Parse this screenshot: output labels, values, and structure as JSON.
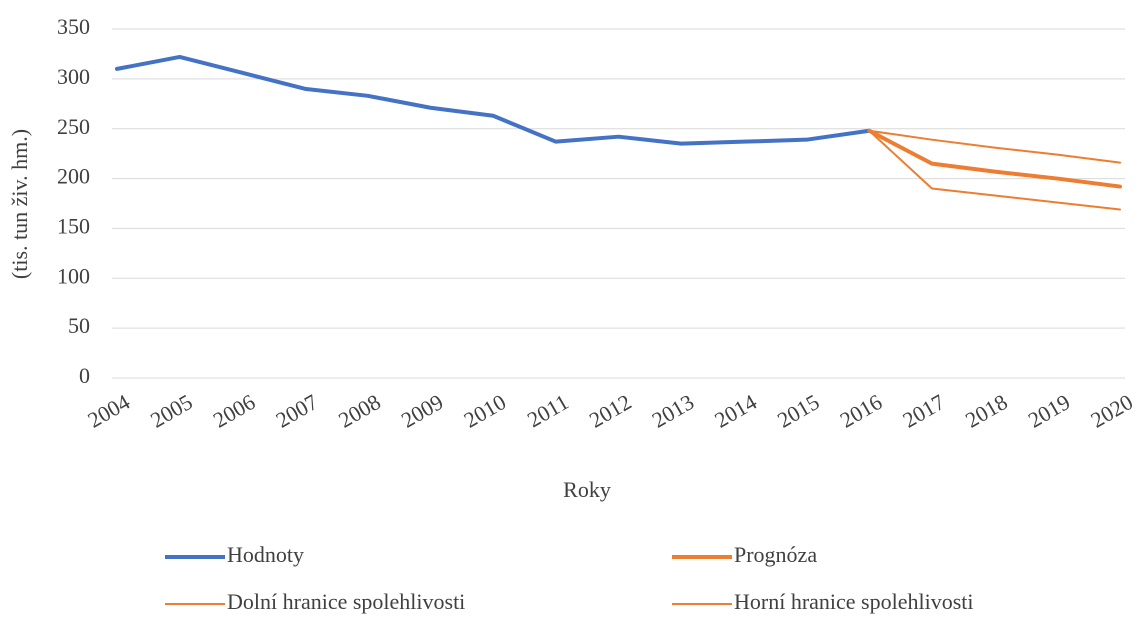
{
  "chart_data": {
    "type": "line",
    "x_label": "Roky",
    "y_label": "(tis. tun živ. hm.)",
    "categories": [
      "2004",
      "2005",
      "2006",
      "2007",
      "2008",
      "2009",
      "2010",
      "2011",
      "2012",
      "2013",
      "2014",
      "2015",
      "2016",
      "2017",
      "2018",
      "2019",
      "2020"
    ],
    "series": [
      {
        "name": "Hodnoty",
        "color": "#4472c4",
        "width": 4,
        "values": [
          310,
          322,
          306,
          290,
          283,
          271,
          263,
          237,
          242,
          235,
          237,
          239,
          248,
          null,
          null,
          null,
          null
        ]
      },
      {
        "name": "Prognóza",
        "color": "#ed7d31",
        "width": 4,
        "values": [
          null,
          null,
          null,
          null,
          null,
          null,
          null,
          null,
          null,
          null,
          null,
          null,
          248,
          215,
          207,
          200,
          192
        ]
      },
      {
        "name": "Dolní hranice spolehlivosti",
        "color": "#ed7d31",
        "width": 2,
        "values": [
          null,
          null,
          null,
          null,
          null,
          null,
          null,
          null,
          null,
          null,
          null,
          null,
          248,
          190,
          183,
          176,
          169
        ]
      },
      {
        "name": "Horní hranice spolehlivosti",
        "color": "#ed7d31",
        "width": 2,
        "values": [
          null,
          null,
          null,
          null,
          null,
          null,
          null,
          null,
          null,
          null,
          null,
          null,
          248,
          239,
          231,
          224,
          216
        ]
      }
    ],
    "ylim": [
      0,
      350
    ],
    "yticks": [
      0,
      50,
      100,
      150,
      200,
      250,
      300,
      350
    ],
    "grid": true
  }
}
